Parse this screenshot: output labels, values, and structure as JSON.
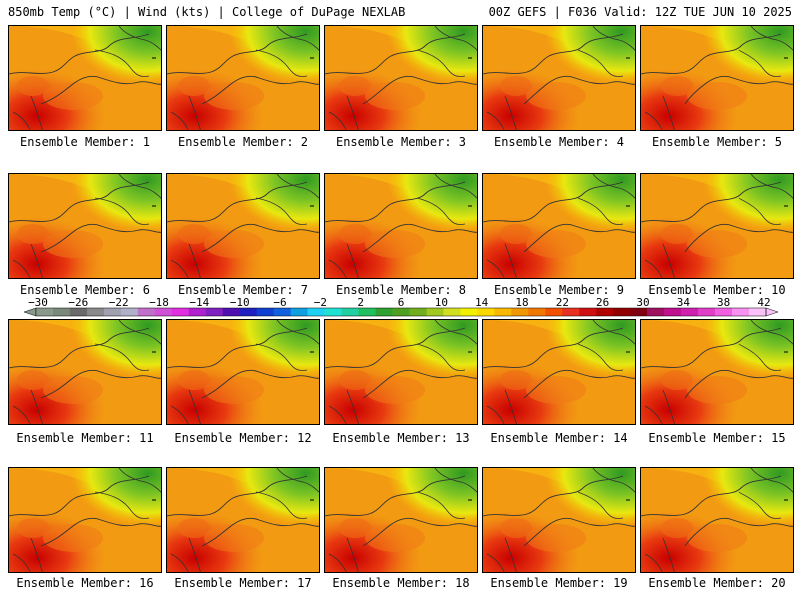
{
  "header": {
    "left": "850mb Temp (°C) | Wind (kts) | College of DuPage NEXLAB",
    "right": "00Z GEFS | F036 Valid: 12Z TUE JUN 10 2025"
  },
  "members": [
    "Ensemble Member: 1",
    "Ensemble Member: 2",
    "Ensemble Member: 3",
    "Ensemble Member: 4",
    "Ensemble Member: 5",
    "Ensemble Member: 6",
    "Ensemble Member: 7",
    "Ensemble Member: 8",
    "Ensemble Member: 9",
    "Ensemble Member: 10",
    "Ensemble Member: 11",
    "Ensemble Member: 12",
    "Ensemble Member: 13",
    "Ensemble Member: 14",
    "Ensemble Member: 15",
    "Ensemble Member: 16",
    "Ensemble Member: 17",
    "Ensemble Member: 18",
    "Ensemble Member: 19",
    "Ensemble Member: 20"
  ],
  "colorbar": {
    "ticks": [
      "-30",
      "-26",
      "-22",
      "-18",
      "-14",
      "-10",
      "-6",
      "-2",
      "2",
      "6",
      "10",
      "14",
      "18",
      "22",
      "26",
      "30",
      "34",
      "38",
      "42"
    ],
    "colors": [
      "#8a9a8a",
      "#7a8a7a",
      "#6a6a6a",
      "#8a8a8a",
      "#a0a0b0",
      "#b0b0c8",
      "#c070c8",
      "#d050d8",
      "#e030e0",
      "#b020d0",
      "#8020c0",
      "#5010b0",
      "#2020c0",
      "#1040d0",
      "#1060e0",
      "#10a0e0",
      "#20d0f0",
      "#20e0d0",
      "#20d0a0",
      "#20c060",
      "#30a030",
      "#50a020",
      "#70b020",
      "#a0c820",
      "#d0e020",
      "#f0f000",
      "#f8d800",
      "#f8b800",
      "#f09800",
      "#f07800",
      "#f05000",
      "#e83020",
      "#d01010",
      "#b00000",
      "#900000",
      "#800010",
      "#a01060",
      "#c01090",
      "#d020b0",
      "#e040c8",
      "#f060e0",
      "#f890f0",
      "#fac0f8"
    ],
    "colors_note": ""
  }
}
